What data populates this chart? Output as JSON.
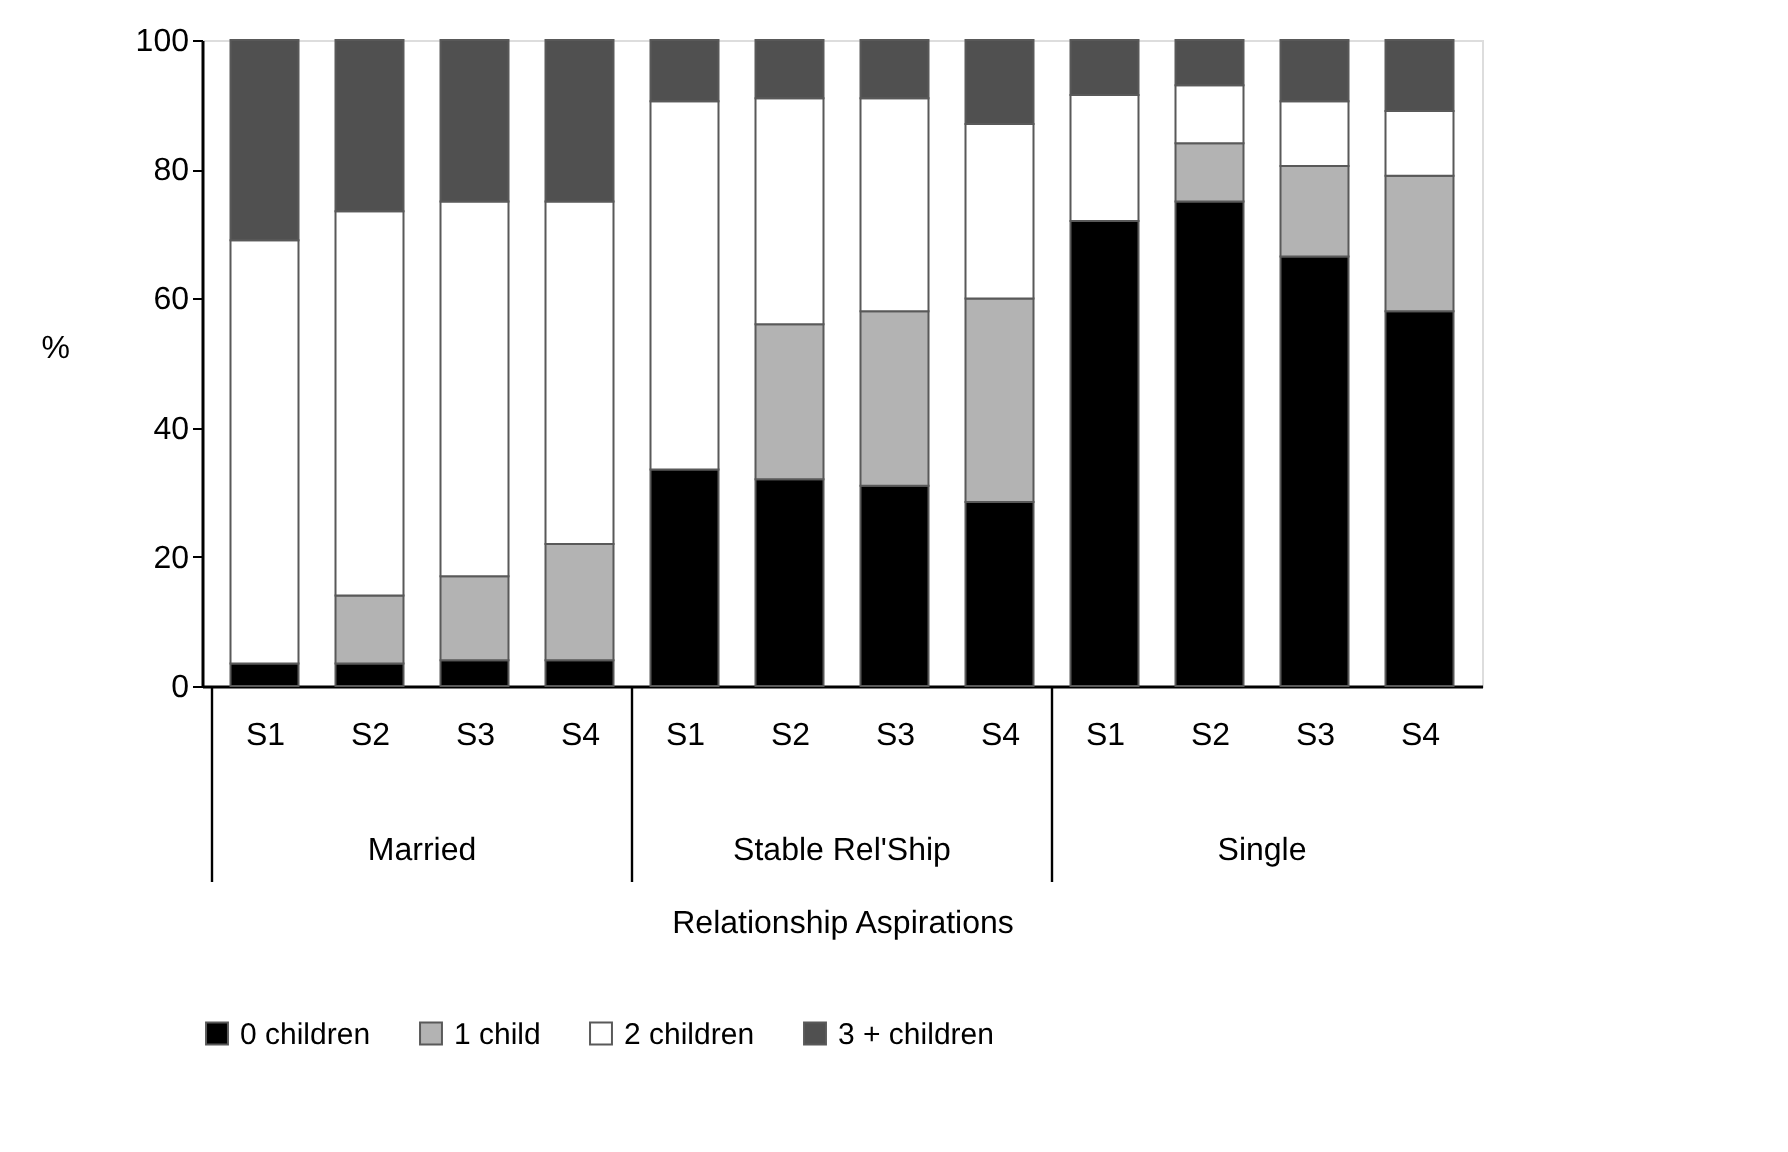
{
  "chart_data": {
    "type": "bar",
    "stacked": true,
    "xlabel": "Relationship Aspirations",
    "ylabel": "%",
    "categories": [
      "S1",
      "S2",
      "S3",
      "S4",
      "S1",
      "S2",
      "S3",
      "S4",
      "S1",
      "S2",
      "S3",
      "S4"
    ],
    "annotations": [
      "Married",
      "Stable Rel'Ship",
      "Single"
    ],
    "series": [
      {
        "name": "0 children",
        "color": "#000000",
        "values": [
          3.5,
          3.5,
          4,
          4,
          33.5,
          32,
          31,
          28.5,
          72,
          75,
          66.5,
          58
        ]
      },
      {
        "name": "1 child",
        "color": "#b3b3b3",
        "values": [
          null,
          10.5,
          13,
          18,
          null,
          24,
          27,
          31.5,
          null,
          9,
          14,
          21
        ]
      },
      {
        "name": "2 children",
        "color": "#ffffff",
        "values": [
          65.5,
          59.5,
          58,
          53,
          57,
          35,
          33,
          27,
          19.5,
          9,
          10,
          10
        ]
      },
      {
        "name": "3 + children",
        "color": "#505050",
        "values": [
          31,
          26.5,
          25,
          25,
          9.5,
          9,
          9,
          13,
          8.5,
          7,
          9.5,
          11
        ]
      }
    ],
    "ylim": [
      0,
      100
    ],
    "yticks": [
      0,
      20,
      40,
      60,
      80,
      100
    ],
    "grid": false,
    "legend": "bottom"
  }
}
